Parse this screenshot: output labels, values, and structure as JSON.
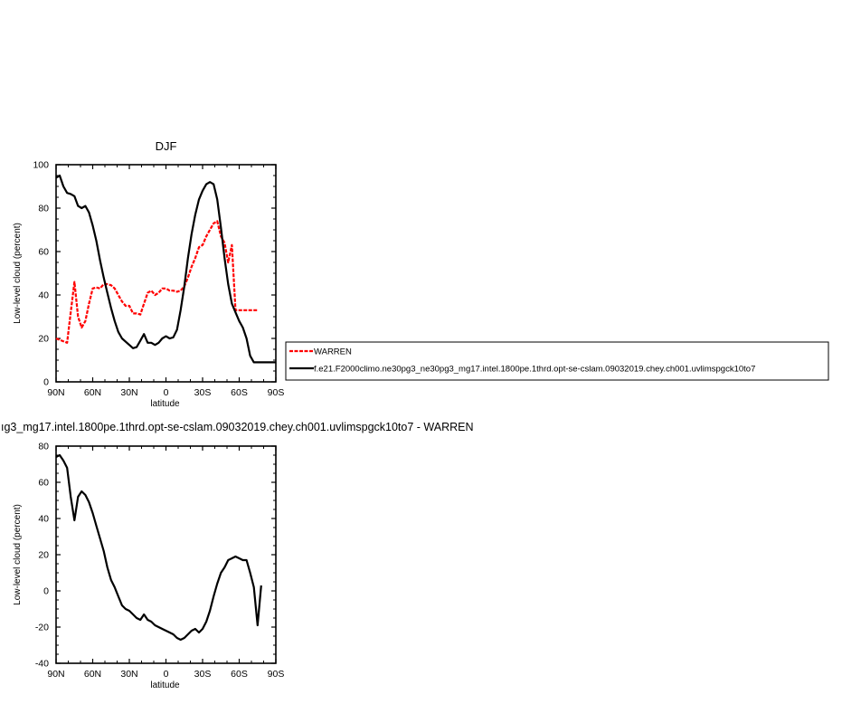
{
  "chart_data": [
    {
      "type": "line",
      "title": "DJF",
      "xlabel": "latitude",
      "ylabel": "Low-level cloud (percent)",
      "xlim": [
        90,
        -90
      ],
      "ylim": [
        0,
        100
      ],
      "x_tick_values": [
        90,
        60,
        30,
        0,
        -30,
        -60,
        -90
      ],
      "x_tick_labels": [
        "90N",
        "60N",
        "30N",
        "0",
        "30S",
        "60S",
        "90S"
      ],
      "y_ticks": [
        0,
        20,
        40,
        60,
        80,
        100
      ],
      "legend_position": "right",
      "series": [
        {
          "name": "WARREN",
          "color": "#ff0000",
          "style": "dashed",
          "x": [
            90,
            81,
            78,
            75,
            72,
            69,
            66,
            63,
            60,
            57,
            54,
            51,
            48,
            45,
            42,
            39,
            36,
            33,
            30,
            27,
            24,
            21,
            18,
            15,
            12,
            9,
            6,
            3,
            0,
            -3,
            -6,
            -9,
            -12,
            -15,
            -18,
            -21,
            -24,
            -27,
            -30,
            -33,
            -36,
            -39,
            -42,
            -45,
            -48,
            -51,
            -54,
            -57,
            -60,
            -63,
            -66,
            -69,
            -72,
            -75
          ],
          "y": [
            20,
            18,
            32,
            46,
            30,
            25,
            28,
            36,
            43,
            43.5,
            43,
            45,
            45,
            44.5,
            43,
            40,
            37,
            35,
            35,
            31.5,
            31.5,
            31,
            36,
            41,
            42,
            40,
            41,
            43,
            43,
            42,
            42,
            41.5,
            42,
            44,
            48,
            53,
            57,
            62,
            63,
            67,
            70,
            73,
            74,
            67,
            64,
            55,
            63,
            33,
            33,
            33,
            33,
            33,
            33,
            33
          ]
        },
        {
          "name": "f.e21.F2000climo.ne30pg3_ne30pg3_mg17.intel.1800pe.1thrd.opt-se-cslam.09032019.chey.ch001.uvlimspgck10to7",
          "color": "#000000",
          "style": "solid",
          "x": [
            90,
            87,
            84,
            81,
            78,
            75,
            72,
            69,
            66,
            63,
            60,
            57,
            54,
            51,
            48,
            45,
            42,
            39,
            36,
            33,
            30,
            27,
            24,
            21,
            18,
            15,
            12,
            9,
            6,
            3,
            0,
            -3,
            -6,
            -9,
            -12,
            -15,
            -18,
            -21,
            -24,
            -27,
            -30,
            -33,
            -36,
            -39,
            -42,
            -45,
            -48,
            -51,
            -54,
            -57,
            -60,
            -63,
            -66,
            -69,
            -72,
            -75,
            -78,
            -81,
            -84,
            -87,
            -90
          ],
          "y": [
            94,
            95,
            90,
            87,
            86.5,
            85.5,
            81,
            80,
            81,
            78,
            72,
            65,
            56,
            48,
            41,
            34,
            28,
            23,
            20,
            18.5,
            17,
            15.5,
            16,
            19,
            22,
            18,
            18,
            17,
            18,
            20,
            21,
            20,
            20.5,
            24,
            33,
            44,
            57,
            68,
            77,
            84,
            88,
            91,
            92,
            91,
            84,
            71,
            57,
            45,
            36,
            32,
            28,
            25,
            20,
            12,
            9,
            9,
            9,
            9,
            9,
            9,
            9
          ]
        }
      ]
    },
    {
      "type": "line",
      "title": "ıg3_mg17.intel.1800pe.1thrd.opt-se-cslam.09032019.chey.ch001.uvlimspgck10to7 - WARREN",
      "xlabel": "latitude",
      "ylabel": "Low-level cloud (percent)",
      "xlim": [
        90,
        -90
      ],
      "ylim": [
        -40,
        80
      ],
      "x_tick_values": [
        90,
        60,
        30,
        0,
        -30,
        -60,
        -90
      ],
      "x_tick_labels": [
        "90N",
        "60N",
        "30N",
        "0",
        "30S",
        "60S",
        "90S"
      ],
      "y_ticks": [
        -40,
        -20,
        0,
        20,
        40,
        60,
        80
      ],
      "series": [
        {
          "color": "#000000",
          "style": "solid",
          "x": [
            90,
            87,
            84,
            81,
            78,
            75,
            72,
            69,
            66,
            63,
            60,
            57,
            54,
            51,
            48,
            45,
            42,
            39,
            36,
            33,
            30,
            27,
            24,
            21,
            18,
            15,
            12,
            9,
            6,
            3,
            0,
            -3,
            -6,
            -9,
            -12,
            -15,
            -18,
            -21,
            -24,
            -27,
            -30,
            -33,
            -36,
            -39,
            -42,
            -45,
            -48,
            -51,
            -54,
            -57,
            -60,
            -63,
            -66,
            -69,
            -72,
            -75,
            -78
          ],
          "y": [
            74,
            75,
            72,
            68,
            52,
            39,
            52,
            55,
            53,
            49,
            43,
            36,
            29,
            22,
            13,
            6,
            2,
            -3,
            -8,
            -10,
            -11,
            -13,
            -15,
            -16,
            -13,
            -16,
            -17,
            -19,
            -20,
            -21,
            -22,
            -23,
            -24,
            -26,
            -27,
            -26,
            -24,
            -22,
            -21,
            -23,
            -21,
            -17,
            -11,
            -3,
            4,
            10,
            13,
            17,
            18,
            19,
            18,
            17,
            17,
            10,
            2,
            -19,
            3
          ]
        }
      ]
    }
  ]
}
